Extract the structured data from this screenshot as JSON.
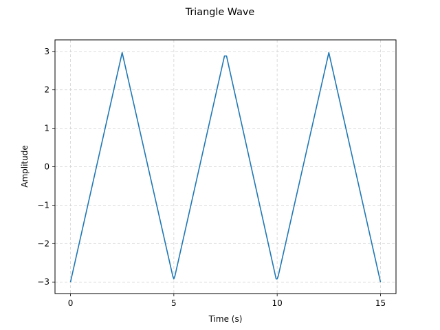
{
  "chart_data": {
    "type": "line",
    "title": "Triangle Wave",
    "xlabel": "Time (s)",
    "ylabel": "Amplitude",
    "xlim": [
      -0.75,
      15.75
    ],
    "ylim": [
      -3.3,
      3.3
    ],
    "grid": true,
    "grid_style": "dashed",
    "line_color": "#1f77b4",
    "grid_color": "#d3d3d3",
    "x_ticks": [
      {
        "value": 0,
        "label": "0"
      },
      {
        "value": 5,
        "label": "5"
      },
      {
        "value": 10,
        "label": "10"
      },
      {
        "value": 15,
        "label": "15"
      }
    ],
    "y_ticks": [
      {
        "value": -3,
        "label": "−3"
      },
      {
        "value": -2,
        "label": "−2"
      },
      {
        "value": -1,
        "label": "−1"
      },
      {
        "value": 0,
        "label": "0"
      },
      {
        "value": 1,
        "label": "1"
      },
      {
        "value": 2,
        "label": "2"
      },
      {
        "value": 3,
        "label": "3"
      }
    ],
    "series": [
      {
        "x": [
          0,
          2.5,
          4.95,
          5.0,
          5.05,
          7.45,
          7.55,
          9.95,
          10.0,
          10.05,
          12.5,
          15.0
        ],
        "y": [
          -3.0,
          2.97,
          -2.85,
          -2.92,
          -2.85,
          2.88,
          2.88,
          -2.92,
          -2.92,
          -2.85,
          2.97,
          -3.0
        ]
      }
    ]
  }
}
